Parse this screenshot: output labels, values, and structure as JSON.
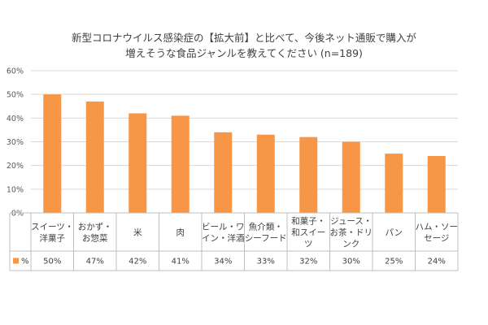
{
  "chart_data": {
    "type": "bar",
    "title": [
      "新型コロナウイルス感染症の【拡大前】と比べて、今後ネット通販で購入が",
      "増えそうな食品ジャンルを教えてください (n=189)"
    ],
    "categories": [
      [
        "スイーツ・",
        "洋菓子"
      ],
      [
        "おかず・",
        "お惣菜"
      ],
      [
        "米"
      ],
      [
        "肉"
      ],
      [
        "ビール・ワ",
        "イン・洋酒"
      ],
      [
        "魚介類・",
        "シーフード"
      ],
      [
        "和菓子・",
        "和スイー",
        "ツ"
      ],
      [
        "ジュース・",
        "お茶・ドリ",
        "ンク"
      ],
      [
        "パン"
      ],
      [
        "ハム・ソー",
        "セージ"
      ]
    ],
    "series": [
      {
        "name": "%",
        "values": [
          50,
          47,
          42,
          41,
          34,
          33,
          32,
          30,
          25,
          24
        ],
        "value_labels": [
          "50%",
          "47%",
          "42%",
          "41%",
          "34%",
          "33%",
          "32%",
          "30%",
          "25%",
          "24%"
        ]
      }
    ],
    "yticks": [
      "60%",
      "50%",
      "40%",
      "30%",
      "20%",
      "10%",
      "0%"
    ],
    "ylim": [
      0,
      60
    ],
    "grid": true,
    "legend_position": "data-table-left",
    "bar_color": "#F79646"
  }
}
